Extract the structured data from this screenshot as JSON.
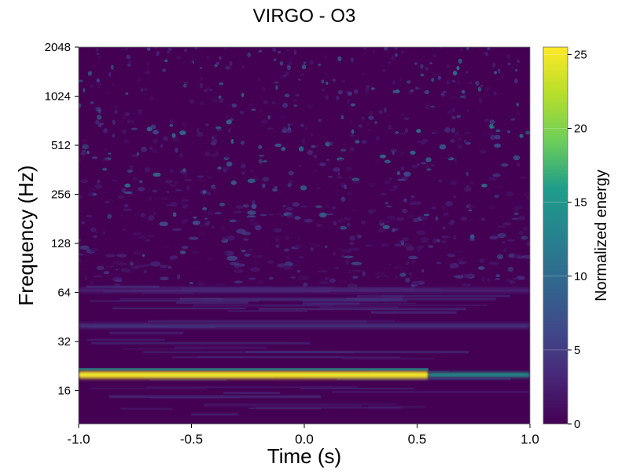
{
  "chart_data": {
    "type": "heatmap",
    "title": "VIRGO - O3",
    "xlabel": "Time (s)",
    "ylabel": "Frequency (Hz)",
    "xlim": [
      -1.0,
      1.0
    ],
    "ylim": [
      10,
      2048
    ],
    "y_scale": "log2",
    "x_ticks": [
      -1.0,
      -0.5,
      0.0,
      0.5,
      1.0
    ],
    "x_tick_labels": [
      "-1.0",
      "-0.5",
      "0.0",
      "0.5",
      "1.0"
    ],
    "y_ticks": [
      16,
      32,
      64,
      128,
      256,
      512,
      1024,
      2048
    ],
    "y_tick_labels": [
      "16",
      "32",
      "64",
      "128",
      "256",
      "512",
      "1024",
      "2048"
    ],
    "colorbar": {
      "label": "Normalized energy",
      "range": [
        0,
        25.5
      ],
      "ticks": [
        0,
        5,
        10,
        15,
        20,
        25
      ],
      "tick_labels": [
        "0",
        "5",
        "10",
        "15",
        "20",
        "25"
      ],
      "colormap": "viridis",
      "stops": [
        "#440154",
        "#482777",
        "#3f4a8a",
        "#31678e",
        "#26838f",
        "#1f9d8a",
        "#6cce5a",
        "#b6de2b",
        "#fee825"
      ]
    },
    "features": [
      {
        "t_start": -1.0,
        "t_end": 0.55,
        "f": 20,
        "energy": 25
      },
      {
        "t_start": 0.55,
        "t_end": 1.0,
        "f": 20,
        "energy": 15
      },
      {
        "t_start": -1.0,
        "t_end": 1.0,
        "f": 40,
        "energy": 5
      },
      {
        "t_start": -1.0,
        "t_end": 1.0,
        "f": 66,
        "energy": 3
      }
    ]
  }
}
